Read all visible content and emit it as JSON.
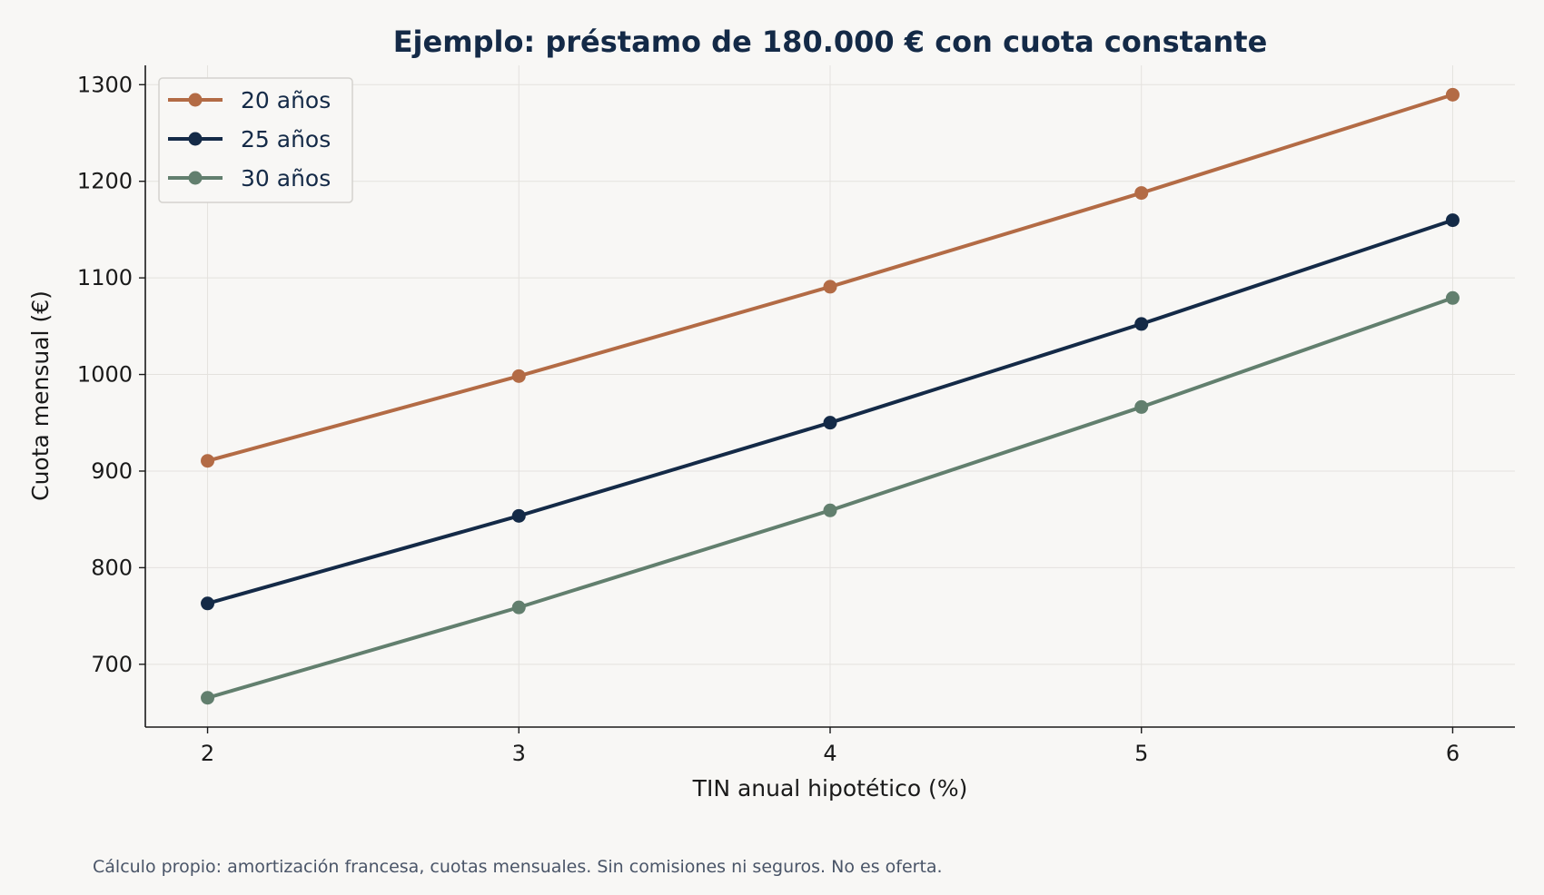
{
  "chart_data": {
    "type": "line",
    "title": "Ejemplo: préstamo de 180.000 € con cuota constante",
    "xlabel": "TIN anual hipotético (%)",
    "ylabel": "Cuota mensual (€)",
    "x": [
      2,
      3,
      4,
      5,
      6
    ],
    "xlim": [
      1.8,
      6.2
    ],
    "ylim": [
      635,
      1320
    ],
    "x_ticks": [
      2,
      3,
      4,
      5,
      6
    ],
    "y_ticks": [
      700,
      800,
      900,
      1000,
      1100,
      1200,
      1300
    ],
    "grid": true,
    "legend_position": "top-left",
    "series": [
      {
        "name": "20 años",
        "color": "#b36b45",
        "values": [
          910.6,
          998.3,
          1090.8,
          1187.9,
          1289.6
        ]
      },
      {
        "name": "25 años",
        "color": "#142a47",
        "values": [
          763.0,
          853.6,
          950.1,
          1052.3,
          1159.7
        ]
      },
      {
        "name": "30 años",
        "color": "#627f6e",
        "values": [
          665.3,
          758.9,
          859.3,
          966.3,
          1079.2
        ]
      }
    ],
    "footnote": "Cálculo propio: amortización francesa, cuotas mensuales. Sin comisiones ni seguros. No es oferta."
  }
}
